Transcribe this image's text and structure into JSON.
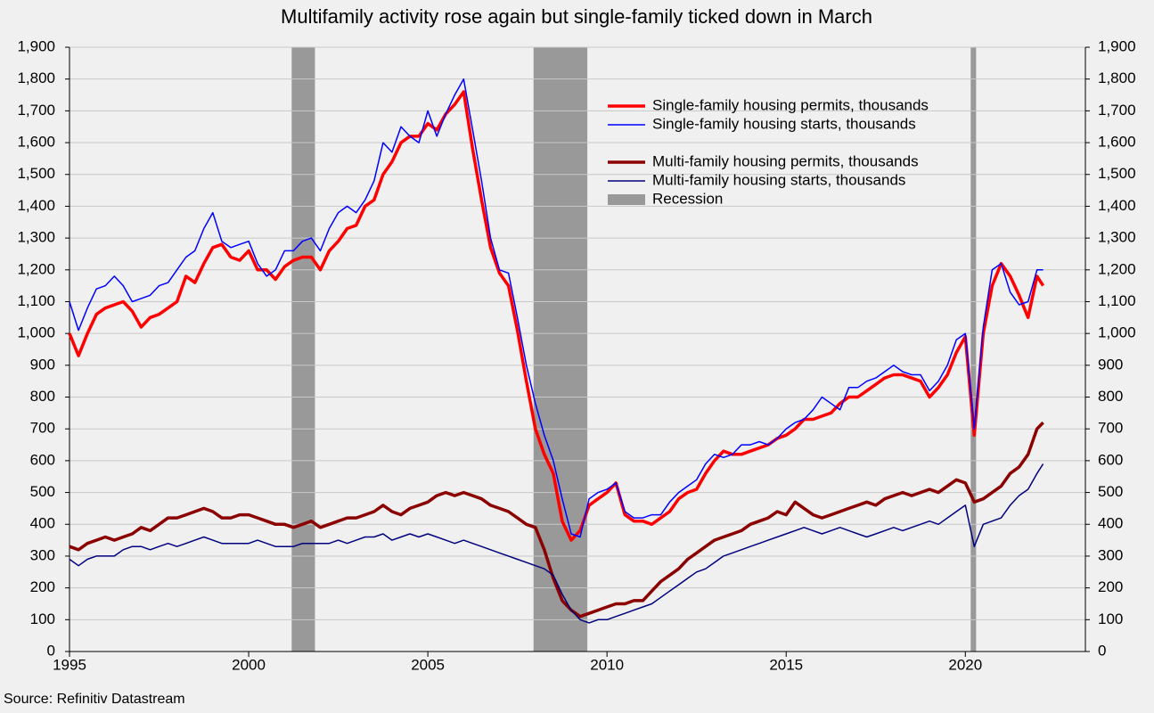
{
  "chart_data": {
    "type": "line",
    "title": "Multifamily activity rose again but single-family ticked down in March",
    "source": "Source: Refinitiv Datastream",
    "x": [
      1995,
      1995.25,
      1995.5,
      1995.75,
      1996,
      1996.25,
      1996.5,
      1996.75,
      1997,
      1997.25,
      1997.5,
      1997.75,
      1998,
      1998.25,
      1998.5,
      1998.75,
      1999,
      1999.25,
      1999.5,
      1999.75,
      2000,
      2000.25,
      2000.5,
      2000.75,
      2001,
      2001.25,
      2001.5,
      2001.75,
      2002,
      2002.25,
      2002.5,
      2002.75,
      2003,
      2003.25,
      2003.5,
      2003.75,
      2004,
      2004.25,
      2004.5,
      2004.75,
      2005,
      2005.25,
      2005.5,
      2005.75,
      2006,
      2006.25,
      2006.5,
      2006.75,
      2007,
      2007.25,
      2007.5,
      2007.75,
      2008,
      2008.25,
      2008.5,
      2008.75,
      2009,
      2009.25,
      2009.5,
      2009.75,
      2010,
      2010.25,
      2010.5,
      2010.75,
      2011,
      2011.25,
      2011.5,
      2011.75,
      2012,
      2012.25,
      2012.5,
      2012.75,
      2013,
      2013.25,
      2013.5,
      2013.75,
      2014,
      2014.25,
      2014.5,
      2014.75,
      2015,
      2015.25,
      2015.5,
      2015.75,
      2016,
      2016.25,
      2016.5,
      2016.75,
      2017,
      2017.25,
      2017.5,
      2017.75,
      2018,
      2018.25,
      2018.5,
      2018.75,
      2019,
      2019.25,
      2019.5,
      2019.75,
      2020,
      2020.25,
      2020.5,
      2020.75,
      2021,
      2021.25,
      2021.5,
      2021.75,
      2022,
      2022.17
    ],
    "series": [
      {
        "name": "Single-family housing permits, thousands",
        "color": "#ff0000",
        "line_width": 3.5,
        "values": [
          1000,
          930,
          1000,
          1060,
          1080,
          1090,
          1100,
          1070,
          1020,
          1050,
          1060,
          1080,
          1100,
          1180,
          1160,
          1220,
          1270,
          1280,
          1240,
          1230,
          1260,
          1200,
          1200,
          1170,
          1210,
          1230,
          1240,
          1240,
          1200,
          1260,
          1290,
          1330,
          1340,
          1400,
          1420,
          1500,
          1540,
          1600,
          1620,
          1620,
          1660,
          1640,
          1690,
          1720,
          1760,
          1580,
          1420,
          1270,
          1190,
          1150,
          1010,
          850,
          700,
          620,
          560,
          410,
          350,
          380,
          460,
          480,
          500,
          530,
          430,
          410,
          410,
          400,
          420,
          440,
          480,
          500,
          510,
          560,
          600,
          630,
          620,
          620,
          630,
          640,
          650,
          670,
          680,
          700,
          730,
          730,
          740,
          750,
          780,
          800,
          800,
          820,
          840,
          860,
          870,
          870,
          860,
          850,
          800,
          830,
          870,
          940,
          990,
          680,
          1000,
          1150,
          1220,
          1180,
          1120,
          1050,
          1180,
          1150
        ]
      },
      {
        "name": "Single-family housing starts, thousands",
        "color": "#0000ff",
        "line_width": 1.5,
        "values": [
          1100,
          1010,
          1080,
          1140,
          1150,
          1180,
          1150,
          1100,
          1110,
          1120,
          1150,
          1160,
          1200,
          1240,
          1260,
          1330,
          1380,
          1290,
          1270,
          1280,
          1290,
          1220,
          1180,
          1200,
          1260,
          1260,
          1290,
          1300,
          1260,
          1330,
          1380,
          1400,
          1380,
          1420,
          1480,
          1600,
          1570,
          1650,
          1620,
          1600,
          1700,
          1620,
          1690,
          1750,
          1800,
          1640,
          1480,
          1300,
          1200,
          1190,
          1050,
          900,
          780,
          680,
          600,
          480,
          370,
          360,
          480,
          500,
          510,
          530,
          440,
          420,
          420,
          430,
          430,
          470,
          500,
          520,
          540,
          590,
          620,
          610,
          620,
          650,
          650,
          660,
          650,
          670,
          700,
          720,
          730,
          760,
          800,
          780,
          760,
          830,
          830,
          850,
          860,
          880,
          900,
          880,
          870,
          870,
          820,
          850,
          900,
          980,
          1000,
          700,
          1020,
          1200,
          1220,
          1130,
          1090,
          1100,
          1200,
          1200
        ]
      },
      {
        "name": "Multi-family housing permits, thousands",
        "color": "#8b0000",
        "line_width": 3.5,
        "values": [
          330,
          320,
          340,
          350,
          360,
          350,
          360,
          370,
          390,
          380,
          400,
          420,
          420,
          430,
          440,
          450,
          440,
          420,
          420,
          430,
          430,
          420,
          410,
          400,
          400,
          390,
          400,
          410,
          390,
          400,
          410,
          420,
          420,
          430,
          440,
          460,
          440,
          430,
          450,
          460,
          470,
          490,
          500,
          490,
          500,
          490,
          480,
          460,
          450,
          440,
          420,
          400,
          390,
          320,
          230,
          160,
          130,
          110,
          120,
          130,
          140,
          150,
          150,
          160,
          160,
          190,
          220,
          240,
          260,
          290,
          310,
          330,
          350,
          360,
          370,
          380,
          400,
          410,
          420,
          440,
          430,
          470,
          450,
          430,
          420,
          430,
          440,
          450,
          460,
          470,
          460,
          480,
          490,
          500,
          490,
          500,
          510,
          500,
          520,
          540,
          530,
          470,
          480,
          500,
          520,
          560,
          580,
          620,
          700,
          720
        ]
      },
      {
        "name": "Multi-family housing starts, thousands",
        "color": "#00007f",
        "line_width": 1.5,
        "values": [
          290,
          270,
          290,
          300,
          300,
          300,
          320,
          330,
          330,
          320,
          330,
          340,
          330,
          340,
          350,
          360,
          350,
          340,
          340,
          340,
          340,
          350,
          340,
          330,
          330,
          330,
          340,
          340,
          340,
          340,
          350,
          340,
          350,
          360,
          360,
          370,
          350,
          360,
          370,
          360,
          370,
          360,
          350,
          340,
          350,
          340,
          330,
          320,
          310,
          300,
          290,
          280,
          270,
          260,
          240,
          180,
          130,
          100,
          90,
          100,
          100,
          110,
          120,
          130,
          140,
          150,
          170,
          190,
          210,
          230,
          250,
          260,
          280,
          300,
          310,
          320,
          330,
          340,
          350,
          360,
          370,
          380,
          390,
          380,
          370,
          380,
          390,
          380,
          370,
          360,
          370,
          380,
          390,
          380,
          390,
          400,
          410,
          400,
          420,
          440,
          460,
          330,
          400,
          410,
          420,
          460,
          490,
          510,
          560,
          590
        ]
      }
    ],
    "recession_label": "Recession",
    "recession_color": "#999999",
    "recessions": [
      [
        2001.2,
        2001.85
      ],
      [
        2007.95,
        2009.45
      ],
      [
        2020.15,
        2020.3
      ]
    ],
    "legend": "upper center",
    "xlim": [
      1995,
      2023.35
    ],
    "xticks": [
      1995,
      2000,
      2005,
      2010,
      2015,
      2020
    ],
    "ylim": [
      0,
      1900
    ],
    "y2lim": [
      0,
      1900
    ],
    "yticks": [
      0,
      100,
      200,
      300,
      400,
      500,
      600,
      700,
      800,
      900,
      {
        "value": 1000,
        "label": "1,000"
      },
      {
        "value": 1100,
        "label": "1,100"
      },
      {
        "value": 1200,
        "label": "1,200"
      },
      {
        "value": 1300,
        "label": "1,300"
      },
      {
        "value": 1400,
        "label": "1,400"
      },
      {
        "value": 1500,
        "label": "1,500"
      },
      {
        "value": 1600,
        "label": "1,600"
      },
      {
        "value": 1700,
        "label": "1,700"
      },
      {
        "value": 1800,
        "label": "1,800"
      },
      {
        "value": 1900,
        "label": "1,900"
      }
    ],
    "y2ticks": [
      0,
      100,
      200,
      300,
      400,
      500,
      600,
      700,
      800,
      900,
      {
        "value": 1000,
        "label": "1,000"
      },
      {
        "value": 1100,
        "label": "1,100"
      },
      {
        "value": 1200,
        "label": "1,200"
      },
      {
        "value": 1300,
        "label": "1,300"
      },
      {
        "value": 1400,
        "label": "1,400"
      },
      {
        "value": 1500,
        "label": "1,500"
      },
      {
        "value": 1600,
        "label": "1,600"
      },
      {
        "value": 1700,
        "label": "1,700"
      },
      {
        "value": 1800,
        "label": "1,800"
      },
      {
        "value": 1900,
        "label": "1,900"
      }
    ],
    "grid": true
  }
}
